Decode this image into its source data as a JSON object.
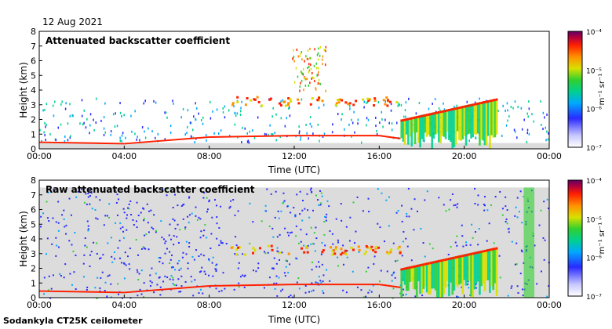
{
  "date_label": "12 Aug 2021",
  "footer_label": "Sodankyla CT25K ceilometer",
  "chart_data": [
    {
      "type": "heatmap",
      "title": "Attenuated backscatter coefficient",
      "xlabel": "Time (UTC)",
      "ylabel": "Height (km)",
      "x_ticks": [
        "00:00",
        "04:00",
        "08:00",
        "12:00",
        "16:00",
        "20:00",
        "00:00"
      ],
      "y_ticks": [
        "0",
        "1",
        "2",
        "3",
        "4",
        "5",
        "6",
        "7",
        "8"
      ],
      "ylim": [
        0,
        8
      ],
      "colorbar": {
        "label": "m⁻¹ sr⁻¹",
        "scale": "log",
        "range": [
          1e-07,
          0.0001
        ],
        "ticks": [
          "10⁻⁷",
          "10⁻⁶",
          "10⁻⁵",
          "10⁻⁴"
        ]
      }
    },
    {
      "type": "heatmap",
      "title": "Raw attenuated backscatter coefficient",
      "xlabel": "Time (UTC)",
      "ylabel": "Height (km)",
      "x_ticks": [
        "00:00",
        "04:00",
        "08:00",
        "12:00",
        "16:00",
        "20:00",
        "00:00"
      ],
      "y_ticks": [
        "0",
        "1",
        "2",
        "3",
        "4",
        "5",
        "6",
        "7",
        "8"
      ],
      "ylim": [
        0,
        8
      ],
      "colorbar": {
        "label": "m⁻¹ sr⁻¹",
        "scale": "log",
        "range": [
          1e-07,
          0.0001
        ],
        "ticks": [
          "10⁻⁷",
          "10⁻⁶",
          "10⁻⁵",
          "10⁻⁴"
        ]
      }
    }
  ]
}
